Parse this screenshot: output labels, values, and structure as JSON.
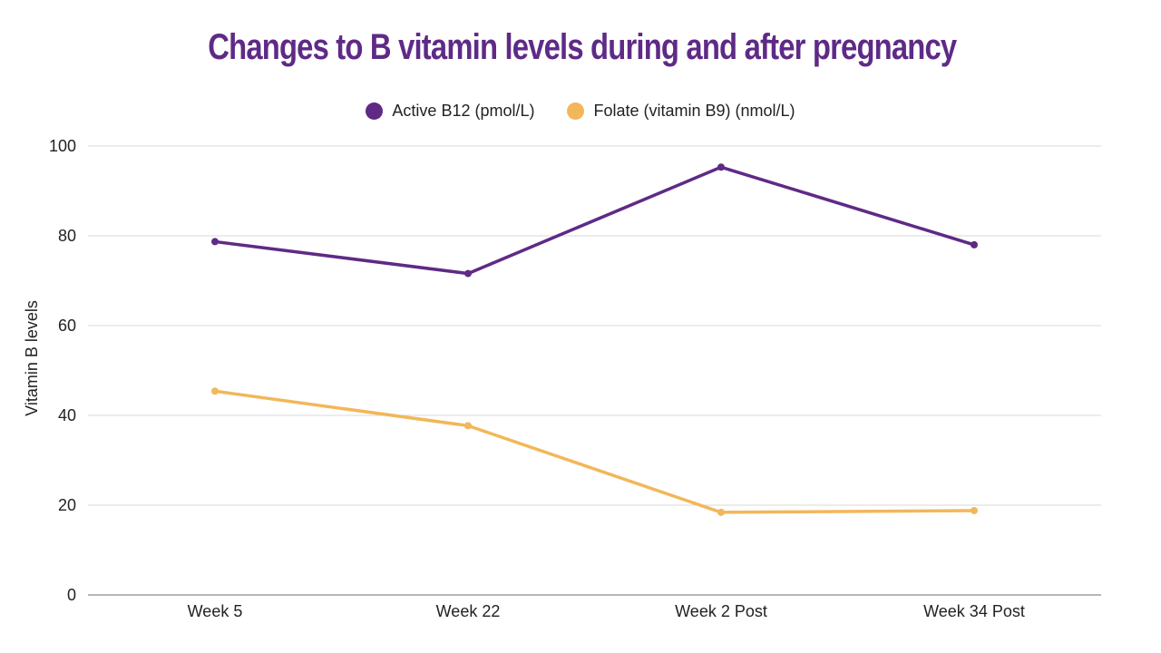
{
  "chart_data": {
    "type": "line",
    "title": "Changes to B vitamin levels during and after pregnancy",
    "xlabel": "",
    "ylabel": "Vitamin B levels",
    "categories": [
      "Week 5",
      "Week 22",
      "Week 2 Post",
      "Week 34 Post"
    ],
    "yticks": [
      "0",
      "20",
      "40",
      "60",
      "80",
      "100"
    ],
    "ylim": [
      0,
      100
    ],
    "grid": true,
    "legend_position": "top-center",
    "series": [
      {
        "name": "Active B12 (pmol/L)",
        "color": "#5f2a86",
        "values": [
          78.7,
          71.6,
          95.3,
          78.0
        ]
      },
      {
        "name": "Folate (vitamin B9) (nmol/L)",
        "color": "#f2b75a",
        "values": [
          45.4,
          37.7,
          18.4,
          18.8
        ]
      }
    ],
    "title_color": "#5f2a86",
    "grid_color": "#d9d9d9",
    "axis_color": "#8a8a8a"
  }
}
